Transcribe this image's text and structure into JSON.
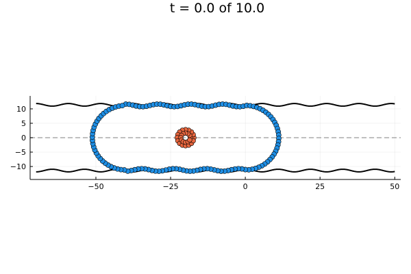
{
  "chart_data": {
    "type": "scatter",
    "title": "t = 0.0 of 10.0",
    "xlabel": "",
    "ylabel": "",
    "xlim": [
      -72,
      52
    ],
    "ylim": [
      -14.5,
      14.5
    ],
    "xticks": [
      -50,
      -25,
      0,
      25,
      50
    ],
    "yticks": [
      -10,
      -5,
      0,
      5,
      10
    ],
    "xtick_labels": [
      "−50",
      "−25",
      "0",
      "25",
      "50"
    ],
    "ytick_labels": [
      "−10",
      "−5",
      "0",
      "5",
      "10"
    ],
    "grid": true,
    "legend": "none",
    "walls": {
      "color": "#000000",
      "x_range": [
        -70,
        50
      ],
      "upper_mean": 11.4,
      "lower_mean": -11.4,
      "amplitude": 0.45,
      "period": 10.8
    },
    "centerline": {
      "y": 0,
      "color": "#999999",
      "style": "dashed"
    },
    "series": [
      {
        "kind": "capsule",
        "color": "#1f8fe5",
        "center_x": -20,
        "half_length": 20,
        "radius": 11.2,
        "bump_amplitude": 0.45,
        "bump_period": 10.8,
        "n_points": 130
      },
      {
        "kind": "ring",
        "color": "#e8673f",
        "center": [
          -20,
          0
        ],
        "outer_radius": 2.8,
        "inner_radius": 1.6,
        "n_points": 16
      }
    ]
  }
}
